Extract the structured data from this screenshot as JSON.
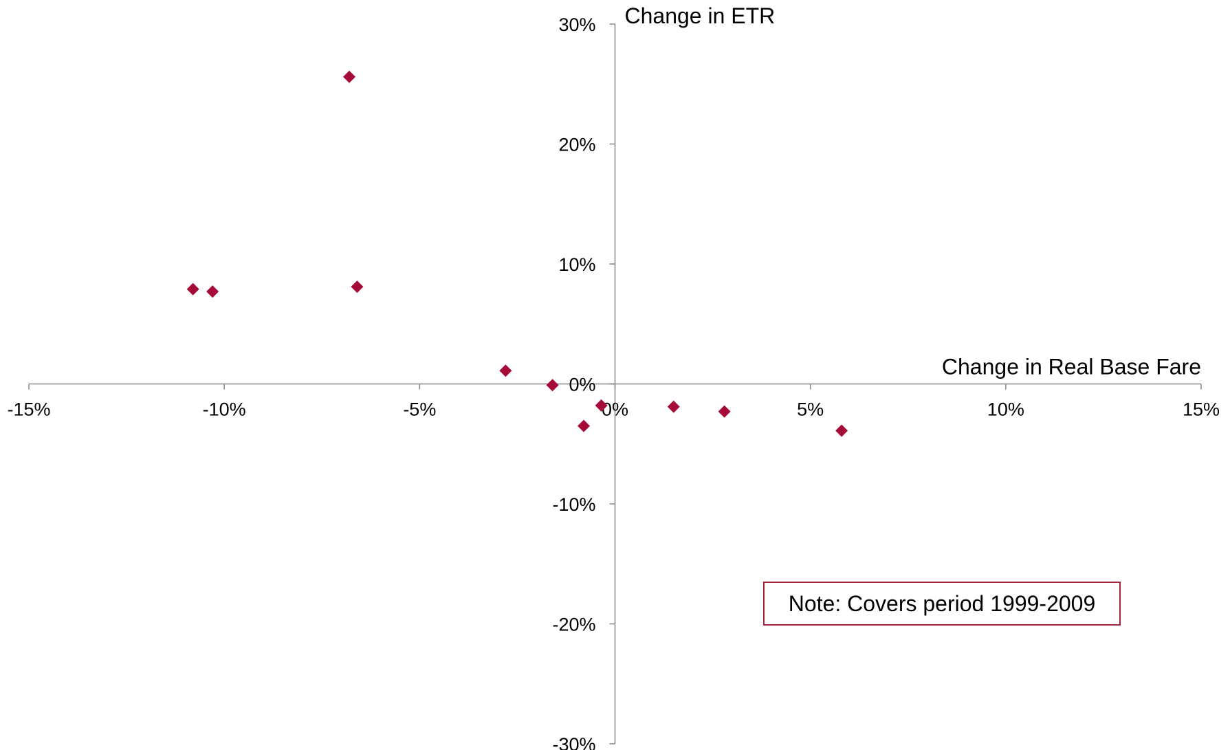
{
  "chart_data": {
    "type": "scatter",
    "xlabel": "Change in Real Base Fare",
    "ylabel": "Change in ETR",
    "xlim": [
      -15,
      15
    ],
    "ylim": [
      -30,
      30
    ],
    "x_ticks": [
      -15,
      -10,
      -5,
      0,
      5,
      10,
      15
    ],
    "y_ticks": [
      -30,
      -20,
      -10,
      0,
      10,
      20,
      30
    ],
    "x_tick_labels": [
      "-15%",
      "-10%",
      "-5%",
      "0%",
      "5%",
      "10%",
      "15%"
    ],
    "y_tick_labels": [
      "-30%",
      "-20%",
      "-10%",
      "0%",
      "10%",
      "20%",
      "30%"
    ],
    "grid": false,
    "marker": "diamond",
    "marker_color": "#a50b36",
    "axis_color": "#868686",
    "series": [
      {
        "points": [
          {
            "x": -10.8,
            "y": 7.9
          },
          {
            "x": -10.3,
            "y": 7.7
          },
          {
            "x": -6.8,
            "y": 25.6
          },
          {
            "x": -6.6,
            "y": 8.1
          },
          {
            "x": -2.8,
            "y": 1.1
          },
          {
            "x": -1.6,
            "y": -0.1
          },
          {
            "x": -0.8,
            "y": -3.5
          },
          {
            "x": -0.35,
            "y": -1.8
          },
          {
            "x": 1.5,
            "y": -1.9
          },
          {
            "x": 2.8,
            "y": -2.3
          },
          {
            "x": 5.8,
            "y": -3.9
          }
        ]
      }
    ],
    "annotations": [
      {
        "text": "Note: Covers period 1999-2009",
        "border_color": "#a0243c"
      }
    ]
  }
}
